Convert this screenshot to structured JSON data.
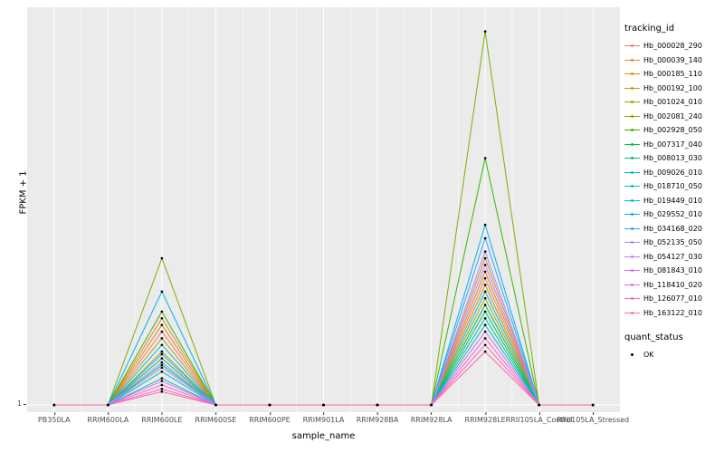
{
  "figure": {
    "ylabel": "FPKM + 1",
    "xlabel": "sample_name",
    "y_tick": "1"
  },
  "legend": {
    "tracking_title": "tracking_id",
    "quant_title": "quant_status",
    "quant_items": [
      {
        "label": "OK",
        "color": "#000000"
      }
    ]
  },
  "chart_data": {
    "type": "line",
    "title": "",
    "xlabel": "sample_name",
    "ylabel": "FPKM + 1",
    "ylim": [
      1,
      30
    ],
    "y_ticks_shown": [
      "1"
    ],
    "legend_position": "right",
    "panel_bg": "#EBEBEB",
    "grid_color": "#FFFFFF",
    "point_color": "#000000",
    "categories": [
      "PB350LA",
      "RRIM600LA",
      "RRIM600LE",
      "RRIM600SE",
      "RRIM600PE",
      "RRIM901LA",
      "RRIM928BA",
      "RRIM928LA",
      "RRIM928LE",
      "RRII105LA_Control",
      "RRII105LA_Stressed"
    ],
    "series": [
      {
        "name": "Hb_000028_290",
        "color": "#F8766D",
        "values": [
          1,
          1,
          6.5,
          1,
          1,
          1,
          1,
          1,
          10.5,
          1,
          1
        ]
      },
      {
        "name": "Hb_000039_140",
        "color": "#EA8331",
        "values": [
          1,
          1,
          7.5,
          1,
          1,
          1,
          1,
          1,
          12,
          1,
          1
        ]
      },
      {
        "name": "Hb_000185_110",
        "color": "#D89000",
        "values": [
          1,
          1,
          7,
          1,
          1,
          1,
          1,
          1,
          11,
          1,
          1
        ]
      },
      {
        "name": "Hb_000192_100",
        "color": "#C09B00",
        "values": [
          1,
          1,
          6,
          1,
          1,
          1,
          1,
          1,
          10,
          1,
          1
        ]
      },
      {
        "name": "Hb_001024_010",
        "color": "#A3A500",
        "values": [
          1,
          1,
          5,
          1,
          1,
          1,
          1,
          1,
          9,
          1,
          1
        ]
      },
      {
        "name": "Hb_002081_240",
        "color": "#7CAE00",
        "values": [
          1,
          1,
          12,
          1,
          1,
          1,
          1,
          1,
          29,
          1,
          1
        ]
      },
      {
        "name": "Hb_002928_050",
        "color": "#39B600",
        "values": [
          1,
          1,
          8,
          1,
          1,
          1,
          1,
          1,
          19.5,
          1,
          1
        ]
      },
      {
        "name": "Hb_007317_040",
        "color": "#00BB4E",
        "values": [
          1,
          1,
          4.5,
          1,
          1,
          1,
          1,
          1,
          8.5,
          1,
          1
        ]
      },
      {
        "name": "Hb_008013_030",
        "color": "#00BF7D",
        "values": [
          1,
          1,
          4,
          1,
          1,
          1,
          1,
          1,
          8,
          1,
          1
        ]
      },
      {
        "name": "Hb_009026_010",
        "color": "#00C1A3",
        "values": [
          1,
          1,
          3.5,
          1,
          1,
          1,
          1,
          1,
          7.5,
          1,
          1
        ]
      },
      {
        "name": "Hb_018710_050",
        "color": "#00BFC4",
        "values": [
          1,
          1,
          3,
          1,
          1,
          1,
          1,
          1,
          7,
          1,
          1
        ]
      },
      {
        "name": "Hb_019449_010",
        "color": "#00BAE0",
        "values": [
          1,
          1,
          5.5,
          1,
          1,
          1,
          1,
          1,
          9.5,
          1,
          1
        ]
      },
      {
        "name": "Hb_029552_010",
        "color": "#00B0F6",
        "values": [
          1,
          1,
          9.5,
          1,
          1,
          1,
          1,
          1,
          14.5,
          1,
          1
        ]
      },
      {
        "name": "Hb_034168_020",
        "color": "#35A2FF",
        "values": [
          1,
          1,
          4.8,
          1,
          1,
          1,
          1,
          1,
          13.5,
          1,
          1
        ]
      },
      {
        "name": "Hb_052135_050",
        "color": "#9590FF",
        "values": [
          1,
          1,
          4.2,
          1,
          1,
          1,
          1,
          1,
          12.5,
          1,
          1
        ]
      },
      {
        "name": "Hb_054127_030",
        "color": "#C77CFF",
        "values": [
          1,
          1,
          3.8,
          1,
          1,
          1,
          1,
          1,
          11.5,
          1,
          1
        ]
      },
      {
        "name": "Hb_081843_010",
        "color": "#E76BF3",
        "values": [
          1,
          1,
          2.8,
          1,
          1,
          1,
          1,
          1,
          6.5,
          1,
          1
        ]
      },
      {
        "name": "Hb_118410_020",
        "color": "#FA62DB",
        "values": [
          1,
          1,
          2.5,
          1,
          1,
          1,
          1,
          1,
          6,
          1,
          1
        ]
      },
      {
        "name": "Hb_126077_010",
        "color": "#FF62BC",
        "values": [
          1,
          1,
          2.2,
          1,
          1,
          1,
          1,
          1,
          5.5,
          1,
          1
        ]
      },
      {
        "name": "Hb_163122_010",
        "color": "#FF6A98",
        "values": [
          1,
          1,
          2,
          1,
          1,
          1,
          1,
          1,
          5,
          1,
          1
        ]
      }
    ]
  }
}
